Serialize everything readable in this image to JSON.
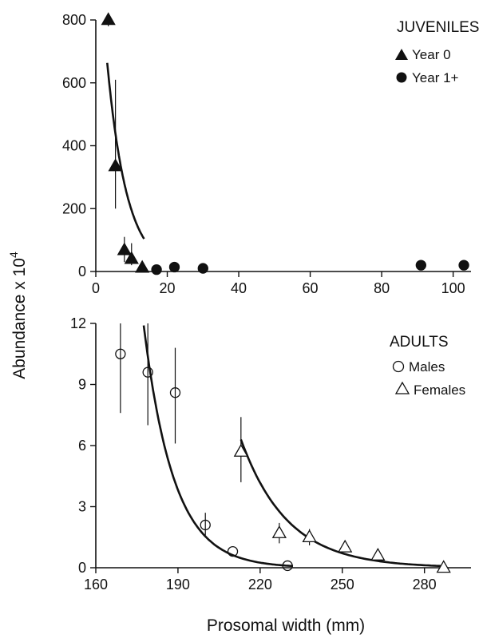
{
  "chart_data": [
    {
      "type": "scatter",
      "panel": "juveniles",
      "title": "",
      "xlabel": "",
      "ylabel": "Abundance x 10",
      "ylabel_superscript": "4",
      "xlim": [
        0,
        105
      ],
      "ylim": [
        0,
        800
      ],
      "x_ticks": [
        0,
        20,
        40,
        60,
        80,
        100
      ],
      "y_ticks": [
        0,
        200,
        400,
        600,
        800
      ],
      "legend_title": "JUVENILES",
      "legend_position": "top-right",
      "series": [
        {
          "name": "Year 0",
          "marker": "filled-triangle",
          "points": [
            {
              "x": 3.5,
              "y": 800,
              "low": 780,
              "high": 800
            },
            {
              "x": 5.5,
              "y": 335,
              "low": 200,
              "high": 610
            },
            {
              "x": 8,
              "y": 68,
              "low": 30,
              "high": 110
            },
            {
              "x": 10,
              "y": 40,
              "low": 20,
              "high": 90
            },
            {
              "x": 13,
              "y": 12,
              "low": 0,
              "high": 30
            }
          ]
        },
        {
          "name": "Year 1+",
          "marker": "filled-circle",
          "points": [
            {
              "x": 17,
              "y": 6
            },
            {
              "x": 22,
              "y": 14
            },
            {
              "x": 30,
              "y": 10
            },
            {
              "x": 91,
              "y": 20
            },
            {
              "x": 103,
              "y": 20
            }
          ]
        }
      ],
      "fit_curve": {
        "a": 1180,
        "b": 0.18,
        "x_start": 3.2,
        "x_end": 13.5
      }
    },
    {
      "type": "scatter",
      "panel": "adults",
      "title": "",
      "xlabel": "Prosomal width (mm)",
      "ylabel": "",
      "xlim": [
        160,
        297
      ],
      "ylim": [
        0,
        12
      ],
      "x_ticks": [
        160,
        190,
        220,
        250,
        280
      ],
      "y_ticks": [
        0,
        3,
        6,
        9,
        12
      ],
      "legend_title": "ADULTS",
      "legend_position": "top-right",
      "series": [
        {
          "name": "Males",
          "marker": "open-circle",
          "points": [
            {
              "x": 169,
              "y": 10.5,
              "low": 7.6,
              "high": 12
            },
            {
              "x": 179,
              "y": 9.6,
              "low": 7.0,
              "high": 12
            },
            {
              "x": 189,
              "y": 8.6,
              "low": 6.1,
              "high": 10.8
            },
            {
              "x": 200,
              "y": 2.1,
              "low": 1.6,
              "high": 2.7
            },
            {
              "x": 210,
              "y": 0.8
            },
            {
              "x": 230,
              "y": 0.1
            }
          ]
        },
        {
          "name": "Females",
          "marker": "open-triangle",
          "points": [
            {
              "x": 213,
              "y": 5.7,
              "low": 4.2,
              "high": 7.4
            },
            {
              "x": 227,
              "y": 1.7,
              "low": 1.2,
              "high": 2.2
            },
            {
              "x": 238,
              "y": 1.5,
              "low": 1.1,
              "high": 1.9
            },
            {
              "x": 251,
              "y": 1.0
            },
            {
              "x": 263,
              "y": 0.6
            },
            {
              "x": 287,
              "y": 0.0
            }
          ]
        }
      ],
      "fit_curves": [
        {
          "series": "Males",
          "x0": 177.5,
          "y0": 11.9,
          "b": 0.0909,
          "x_start": 177.5,
          "x_end": 232
        },
        {
          "series": "Females",
          "x0": 213,
          "y0": 6.3,
          "b": 0.0589,
          "x_start": 213,
          "x_end": 288
        }
      ]
    }
  ]
}
